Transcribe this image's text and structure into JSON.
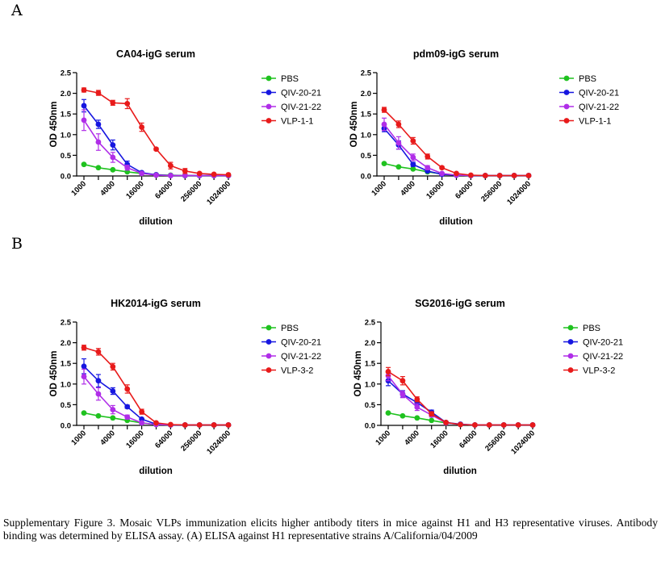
{
  "figure": {
    "panel_labels": [
      "A",
      "B"
    ],
    "caption": "Supplementary Figure 3. Mosaic VLPs immunization elicits higher antibody titers in mice against H1 and H3 representative viruses. Antibody binding was determined by ELISA assay. (A) ELISA against H1 representative strains A/California/04/2009"
  },
  "colors": {
    "PBS": "#1fc21f",
    "QIV-20-21": "#1616e0",
    "QIV-21-22": "#b02ee8",
    "VLP": "#e81a1a"
  },
  "chart_data": [
    {
      "type": "line",
      "title": "CA04-igG serum",
      "xlabel": "dilution",
      "ylabel": "OD 450nm",
      "x_scale": "log",
      "x": [
        1000,
        2000,
        4000,
        8000,
        16000,
        32000,
        64000,
        128000,
        256000,
        512000,
        1024000
      ],
      "xticks": [
        "1000",
        "4000",
        "16000",
        "64000",
        "256000",
        "1024000"
      ],
      "yticks": [
        "0.0",
        "0.5",
        "1.0",
        "1.5",
        "2.0",
        "2.5"
      ],
      "ylim": [
        0,
        2.5
      ],
      "legend": "right",
      "series": [
        {
          "name": "PBS",
          "values": [
            0.28,
            0.2,
            0.15,
            0.1,
            0.06,
            0.03,
            0.02,
            0.01,
            0.01,
            0.01,
            0.01
          ],
          "errors": [
            0,
            0,
            0,
            0,
            0,
            0,
            0,
            0,
            0,
            0,
            0
          ]
        },
        {
          "name": "QIV-20-21",
          "values": [
            1.7,
            1.25,
            0.75,
            0.28,
            0.08,
            0.03,
            0.01,
            0.01,
            0.01,
            0.01,
            0.01
          ],
          "errors": [
            0.15,
            0.1,
            0.12,
            0.08,
            0.02,
            0,
            0,
            0,
            0,
            0,
            0
          ]
        },
        {
          "name": "QIV-21-22",
          "values": [
            1.35,
            0.82,
            0.45,
            0.2,
            0.06,
            0.02,
            0.01,
            0.01,
            0.01,
            0.01,
            0.01
          ],
          "errors": [
            0.25,
            0.2,
            0.12,
            0.06,
            0.02,
            0,
            0,
            0,
            0,
            0,
            0
          ]
        },
        {
          "name": "VLP-1-1",
          "values": [
            2.08,
            2.01,
            1.77,
            1.75,
            1.18,
            0.65,
            0.25,
            0.12,
            0.06,
            0.04,
            0.03
          ],
          "errors": [
            0.05,
            0.06,
            0.06,
            0.12,
            0.1,
            0.03,
            0.08,
            0.06,
            0.02,
            0.02,
            0.01
          ]
        }
      ]
    },
    {
      "type": "line",
      "title": "pdm09-igG serum",
      "xlabel": "dilution",
      "ylabel": "OD 450nm",
      "x_scale": "log",
      "x": [
        1000,
        2000,
        4000,
        8000,
        16000,
        32000,
        64000,
        128000,
        256000,
        512000,
        1024000
      ],
      "xticks": [
        "1000",
        "4000",
        "16000",
        "64000",
        "256000",
        "1024000"
      ],
      "yticks": [
        "0.0",
        "0.5",
        "1.0",
        "1.5",
        "2.0",
        "2.5"
      ],
      "ylim": [
        0,
        2.5
      ],
      "legend": "right",
      "series": [
        {
          "name": "PBS",
          "values": [
            0.3,
            0.22,
            0.17,
            0.1,
            0.05,
            0.02,
            0.01,
            0.01,
            0.01,
            0.01,
            0.01
          ],
          "errors": [
            0,
            0,
            0,
            0,
            0,
            0,
            0,
            0,
            0,
            0,
            0
          ]
        },
        {
          "name": "QIV-20-21",
          "values": [
            1.15,
            0.75,
            0.28,
            0.12,
            0.04,
            0.02,
            0.01,
            0.01,
            0.01,
            0.01,
            0.01
          ],
          "errors": [
            0.08,
            0.1,
            0.05,
            0.03,
            0,
            0,
            0,
            0,
            0,
            0,
            0
          ]
        },
        {
          "name": "QIV-21-22",
          "values": [
            1.25,
            0.8,
            0.45,
            0.2,
            0.06,
            0.02,
            0.01,
            0.01,
            0.01,
            0.01,
            0.01
          ],
          "errors": [
            0.15,
            0.15,
            0.08,
            0.05,
            0.02,
            0,
            0,
            0,
            0,
            0,
            0
          ]
        },
        {
          "name": "VLP-1-1",
          "values": [
            1.6,
            1.25,
            0.85,
            0.47,
            0.2,
            0.06,
            0.02,
            0.01,
            0.01,
            0.01,
            0.01
          ],
          "errors": [
            0.06,
            0.08,
            0.08,
            0.06,
            0.03,
            0.01,
            0,
            0,
            0,
            0,
            0
          ]
        }
      ]
    },
    {
      "type": "line",
      "title": "HK2014-igG serum",
      "xlabel": "dilution",
      "ylabel": "OD 450nm",
      "x_scale": "log",
      "x": [
        1000,
        2000,
        4000,
        8000,
        16000,
        32000,
        64000,
        128000,
        256000,
        512000,
        1024000
      ],
      "xticks": [
        "1000",
        "4000",
        "16000",
        "64000",
        "256000",
        "1024000"
      ],
      "yticks": [
        "0.0",
        "0.5",
        "1.0",
        "1.5",
        "2.0",
        "2.5"
      ],
      "ylim": [
        0,
        2.5
      ],
      "legend": "right",
      "series": [
        {
          "name": "PBS",
          "values": [
            0.3,
            0.23,
            0.18,
            0.12,
            0.06,
            0.02,
            0.01,
            0.01,
            0.01,
            0.01,
            0.01
          ],
          "errors": [
            0,
            0,
            0,
            0,
            0,
            0,
            0,
            0,
            0,
            0,
            0
          ]
        },
        {
          "name": "QIV-20-21",
          "values": [
            1.43,
            1.08,
            0.83,
            0.45,
            0.15,
            0.03,
            0.01,
            0.01,
            0.01,
            0.01,
            0.01
          ],
          "errors": [
            0.18,
            0.15,
            0.08,
            0.04,
            0.02,
            0,
            0,
            0,
            0,
            0,
            0
          ]
        },
        {
          "name": "QIV-21-22",
          "values": [
            1.18,
            0.76,
            0.38,
            0.2,
            0.06,
            0.02,
            0.01,
            0.01,
            0.01,
            0.01,
            0.01
          ],
          "errors": [
            0.18,
            0.15,
            0.1,
            0.05,
            0.02,
            0,
            0,
            0,
            0,
            0,
            0
          ]
        },
        {
          "name": "VLP-3-2",
          "values": [
            1.88,
            1.78,
            1.42,
            0.88,
            0.33,
            0.06,
            0.02,
            0.01,
            0.01,
            0.01,
            0.01
          ],
          "errors": [
            0.06,
            0.08,
            0.08,
            0.1,
            0.06,
            0.02,
            0,
            0,
            0,
            0,
            0
          ]
        }
      ]
    },
    {
      "type": "line",
      "title": "SG2016-igG serum",
      "xlabel": "dilution",
      "ylabel": "OD 450nm",
      "x_scale": "log",
      "x": [
        1000,
        2000,
        4000,
        8000,
        16000,
        32000,
        64000,
        128000,
        256000,
        512000,
        1024000
      ],
      "xticks": [
        "1000",
        "4000",
        "16000",
        "64000",
        "256000",
        "1024000"
      ],
      "yticks": [
        "0.0",
        "0.5",
        "1.0",
        "1.5",
        "2.0",
        "2.5"
      ],
      "ylim": [
        0,
        2.5
      ],
      "legend": "right",
      "series": [
        {
          "name": "PBS",
          "values": [
            0.3,
            0.23,
            0.18,
            0.12,
            0.06,
            0.02,
            0.01,
            0.01,
            0.01,
            0.01,
            0.01
          ],
          "errors": [
            0,
            0,
            0,
            0,
            0,
            0,
            0,
            0,
            0,
            0,
            0
          ]
        },
        {
          "name": "QIV-20-21",
          "values": [
            1.08,
            0.76,
            0.55,
            0.32,
            0.07,
            0.03,
            0.01,
            0.01,
            0.01,
            0.01,
            0.01
          ],
          "errors": [
            0.12,
            0.08,
            0.06,
            0.05,
            0.02,
            0,
            0,
            0,
            0,
            0,
            0
          ]
        },
        {
          "name": "QIV-21-22",
          "values": [
            1.2,
            0.75,
            0.44,
            0.25,
            0.06,
            0.02,
            0.01,
            0.01,
            0.01,
            0.01,
            0.01
          ],
          "errors": [
            0.12,
            0.08,
            0.08,
            0.05,
            0.02,
            0,
            0,
            0,
            0,
            0,
            0
          ]
        },
        {
          "name": "VLP-3-2",
          "values": [
            1.3,
            1.08,
            0.63,
            0.28,
            0.07,
            0.02,
            0.01,
            0.01,
            0.01,
            0.01,
            0.01
          ],
          "errors": [
            0.1,
            0.1,
            0.06,
            0.05,
            0.02,
            0,
            0,
            0,
            0,
            0,
            0
          ]
        }
      ]
    }
  ]
}
